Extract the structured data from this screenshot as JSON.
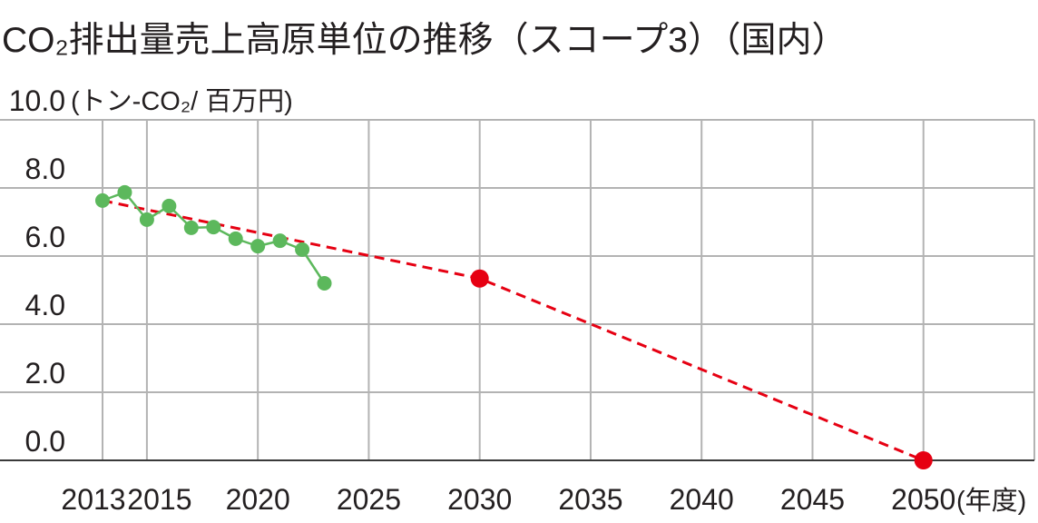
{
  "chart_data": {
    "type": "line",
    "title": "CO₂排出量売上高原単位の推移（スコープ3）（国内）",
    "ylabel": "(トン-CO₂/ 百万円)",
    "xlabel": "(年度)",
    "ylim": [
      0,
      10
    ],
    "xlim": [
      2013,
      2055
    ],
    "yticks": [
      0,
      2,
      4,
      6,
      8,
      10
    ],
    "ytick_labels": [
      "0.0",
      "2.0",
      "4.0",
      "6.0",
      "8.0",
      "10.0"
    ],
    "xticks": [
      2013,
      2015,
      2020,
      2025,
      2030,
      2035,
      2040,
      2045,
      2050
    ],
    "xtick_labels": [
      "2013",
      "2015",
      "2020",
      "2025",
      "2030",
      "2035",
      "2040",
      "2045",
      "2050"
    ],
    "grid": true,
    "series": [
      {
        "x": [
          2013,
          2014,
          2015,
          2016,
          2017,
          2018,
          2019,
          2020,
          2021,
          2022,
          2023
        ],
        "y": [
          7.63,
          7.87,
          7.07,
          7.47,
          6.83,
          6.85,
          6.51,
          6.29,
          6.45,
          6.19,
          5.2
        ],
        "color": "#5cb85c",
        "line_style": "solid",
        "markers": "all"
      },
      {
        "x": [
          2013,
          2030,
          2050
        ],
        "y": [
          7.63,
          5.34,
          0.0
        ],
        "color": "#e60012",
        "line_style": "dashed",
        "markers": [
          2030,
          2050
        ]
      }
    ]
  }
}
